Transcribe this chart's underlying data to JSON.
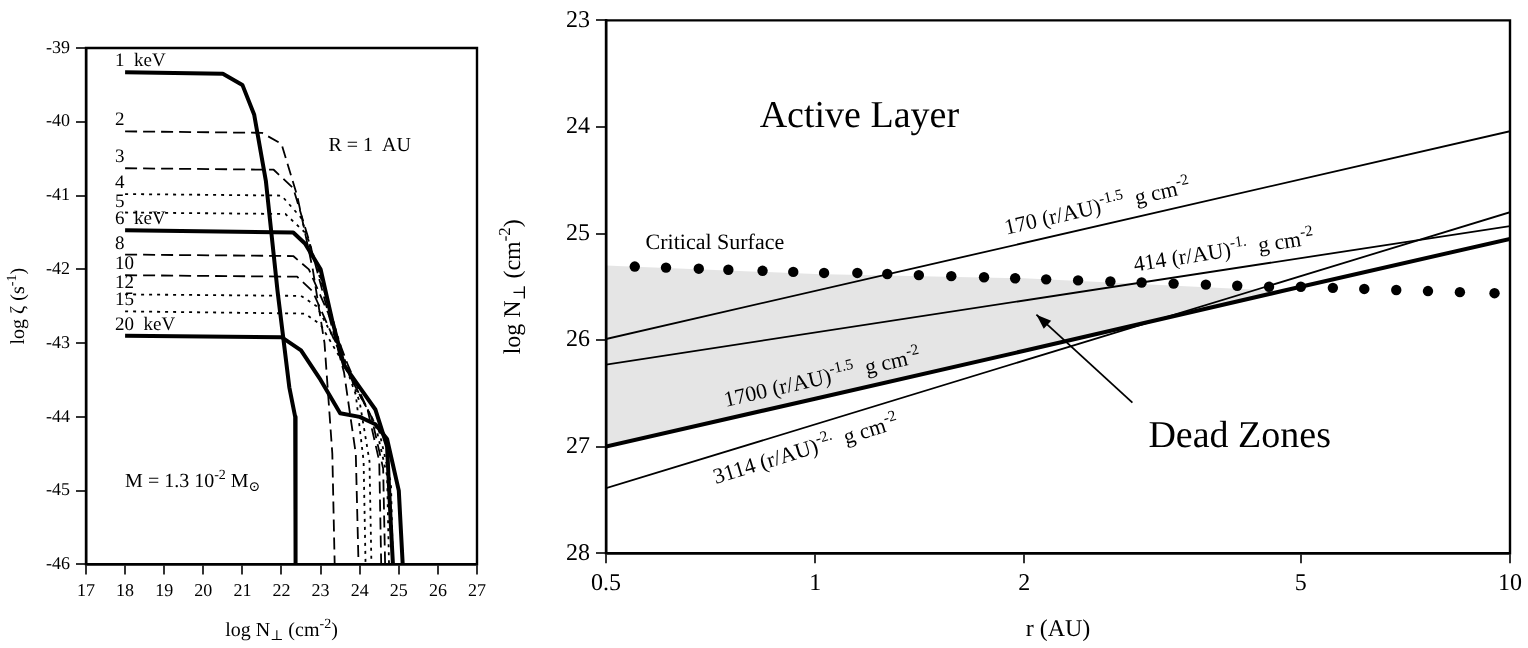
{
  "chart_data": [
    {
      "type": "line",
      "xlabel": "log N$_{⊥}$ (cm$^{-2}$)",
      "ylabel": "log ζ (s$^{-1}$)",
      "xlim": [
        17,
        27
      ],
      "ylim": [
        -46,
        -39
      ],
      "xticks": [
        17,
        18,
        19,
        20,
        21,
        22,
        23,
        24,
        25,
        26,
        27
      ],
      "yticks": [
        -46,
        -45,
        -44,
        -43,
        -42,
        -41,
        -40,
        -39
      ],
      "marker": "none",
      "annotations": [
        "R = 1  AU",
        "M = 1.3 10$^{-2}$ M$_{⊙}$"
      ],
      "series": [
        {
          "name": "1  keV",
          "color": "#000000",
          "line_style": "solid",
          "x": [
            18,
            20.5,
            21,
            21.3,
            21.6,
            21.9,
            22.2,
            22.35,
            22.36
          ],
          "values": [
            -39.33,
            -39.35,
            -39.5,
            -39.9,
            -40.8,
            -42.3,
            -43.6,
            -44,
            -46
          ]
        },
        {
          "name": "2",
          "color": "#000000",
          "line_style": "dashed",
          "x": [
            18,
            21.5,
            22,
            22.4,
            22.8,
            23.1,
            23.3,
            23.36
          ],
          "values": [
            -40.13,
            -40.15,
            -40.3,
            -41,
            -42,
            -43,
            -44.5,
            -46
          ]
        },
        {
          "name": "3",
          "color": "#000000",
          "line_style": "dashed",
          "x": [
            18,
            21.8,
            22.3,
            22.7,
            23.2,
            23.6,
            23.9,
            23.97
          ],
          "values": [
            -40.63,
            -40.65,
            -40.9,
            -41.6,
            -42.6,
            -43.4,
            -44.5,
            -46
          ]
        },
        {
          "name": "4",
          "color": "#000000",
          "line_style": "dotted",
          "x": [
            18,
            22,
            22.5,
            23,
            23.5,
            23.9,
            24.1,
            24.15
          ],
          "values": [
            -40.98,
            -41,
            -41.3,
            -42.1,
            -43.1,
            -43.7,
            -44.6,
            -46
          ]
        },
        {
          "name": "5",
          "color": "#000000",
          "line_style": "dotted",
          "x": [
            18,
            22.1,
            22.6,
            23.1,
            23.6,
            24,
            24.25,
            24.3
          ],
          "values": [
            -41.23,
            -41.25,
            -41.5,
            -42.3,
            -43.2,
            -43.8,
            -44.6,
            -46
          ]
        },
        {
          "name": "6  keV",
          "color": "#000000",
          "line_style": "solid",
          "x": [
            18,
            22.3,
            22.6,
            23,
            23.3,
            23.6,
            24,
            24.4,
            24.7,
            24.8,
            24.85
          ],
          "values": [
            -41.47,
            -41.5,
            -41.65,
            -42,
            -42.7,
            -43.3,
            -43.6,
            -43.9,
            -44.4,
            -45.5,
            -46
          ]
        },
        {
          "name": "8",
          "color": "#000000",
          "line_style": "dashed",
          "x": [
            18,
            22.3,
            22.7,
            23.2,
            23.7,
            24.2,
            24.5,
            24.55
          ],
          "values": [
            -41.8,
            -41.82,
            -42,
            -42.6,
            -43.3,
            -43.9,
            -44.6,
            -46
          ]
        },
        {
          "name": "10",
          "color": "#000000",
          "line_style": "dashed",
          "x": [
            18,
            22.4,
            22.8,
            23.3,
            23.8,
            24.3,
            24.6,
            24.65
          ],
          "values": [
            -42.08,
            -42.1,
            -42.3,
            -42.9,
            -43.5,
            -44,
            -44.7,
            -46
          ]
        },
        {
          "name": "12",
          "color": "#000000",
          "line_style": "dotted",
          "x": [
            18,
            22.5,
            22.9,
            23.4,
            23.9,
            24.4,
            24.7,
            24.75
          ],
          "values": [
            -42.34,
            -42.36,
            -42.5,
            -43,
            -43.6,
            -44.1,
            -44.8,
            -46
          ]
        },
        {
          "name": "15",
          "color": "#000000",
          "line_style": "dotted",
          "x": [
            18,
            22.6,
            23,
            23.5,
            24,
            24.5,
            24.8,
            24.85
          ],
          "values": [
            -42.57,
            -42.6,
            -42.75,
            -43.2,
            -43.7,
            -44.2,
            -44.9,
            -46
          ]
        },
        {
          "name": "20  keV",
          "color": "#000000",
          "line_style": "solid",
          "x": [
            18,
            22,
            22.5,
            23,
            23.5,
            24,
            24.4,
            24.7,
            25,
            25.1
          ],
          "values": [
            -42.9,
            -42.92,
            -43.1,
            -43.5,
            -43.95,
            -44,
            -44.1,
            -44.3,
            -45,
            -46
          ]
        }
      ]
    },
    {
      "type": "line",
      "xlabel": "r (AU)",
      "ylabel": "log N$_{⊥}$ (cm$^{-2}$)",
      "log": "x",
      "xlim": [
        0.5,
        10
      ],
      "ylim": [
        28,
        23
      ],
      "xticks": [
        0.5,
        1,
        2,
        5,
        10
      ],
      "yticks": [
        23,
        24,
        25,
        26,
        27,
        28
      ],
      "annotations": [
        "Active Layer",
        "Dead Zones"
      ],
      "series": [
        {
          "name": "170 (r/AU)$^{-1.5}$  g cm$^{-2}$",
          "color": "#000000",
          "line_style": "solid",
          "x": [
            0.5,
            10
          ],
          "values": [
            25.99,
            24.04
          ]
        },
        {
          "name": "414 (r/AU)$^{-1.}$  g cm$^{-2}$",
          "color": "#000000",
          "line_style": "solid",
          "x": [
            0.5,
            10
          ],
          "values": [
            26.23,
            24.93
          ]
        },
        {
          "name": "1700 (r/AU)$^{-1.5}$  g cm$^{-2}$",
          "color": "#000000",
          "line_style": "solid",
          "x": [
            0.5,
            1,
            2,
            4.7,
            10
          ],
          "values": [
            27,
            26.55,
            26.1,
            25.54,
            25.05
          ],
          "lower": [
            27,
            26.55,
            26.1,
            25.54,
            25.05
          ],
          "upper": [
            25.3,
            25.38,
            25.42,
            25.54,
            25.05
          ]
        },
        {
          "name": "3114 (r/AU)$^{-2.}$  g cm$^{-2}$",
          "color": "#000000",
          "line_style": "solid",
          "x": [
            0.5,
            10
          ],
          "values": [
            27.39,
            24.8
          ]
        },
        {
          "name": "Critical Surface",
          "type": "scatter",
          "marker": "circle",
          "color": "#000000",
          "x": [
            0.55,
            0.61,
            0.68,
            0.75,
            0.84,
            0.93,
            1.03,
            1.15,
            1.27,
            1.41,
            1.57,
            1.75,
            1.94,
            2.15,
            2.39,
            2.66,
            2.95,
            3.28,
            3.65,
            4.05,
            4.5,
            5.0,
            5.56,
            6.17,
            6.86,
            7.62,
            8.47,
            9.5
          ],
          "values": [
            25.31,
            25.32,
            25.33,
            25.34,
            25.35,
            25.36,
            25.37,
            25.37,
            25.38,
            25.39,
            25.4,
            25.41,
            25.42,
            25.43,
            25.44,
            25.45,
            25.46,
            25.47,
            25.48,
            25.49,
            25.5,
            25.5,
            25.51,
            25.52,
            25.53,
            25.54,
            25.55,
            25.56
          ]
        }
      ]
    }
  ]
}
